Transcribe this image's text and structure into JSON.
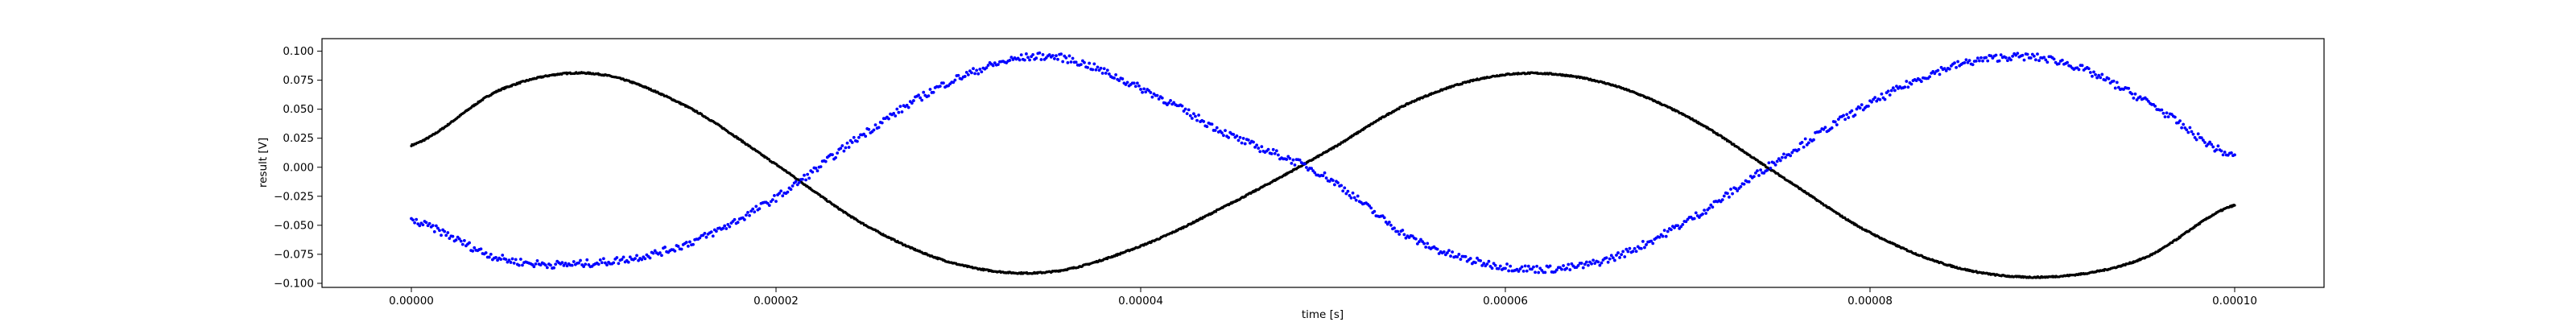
{
  "chart_data": {
    "type": "scatter",
    "title": "",
    "xlabel": "time [s]",
    "ylabel": "result [V]",
    "xlim": [
      -4.9e-06,
      0.0001049
    ],
    "ylim": [
      -0.1035,
      0.1108
    ],
    "x_ticks": [
      0,
      2e-05,
      4e-05,
      6e-05,
      8e-05,
      0.0001
    ],
    "x_tick_labels": [
      "0.00000",
      "0.00002",
      "0.00004",
      "0.00006",
      "0.00008",
      "0.00010"
    ],
    "y_ticks": [
      -0.1,
      -0.075,
      -0.05,
      -0.025,
      0,
      0.025,
      0.05,
      0.075,
      0.1
    ],
    "y_tick_labels": [
      "−0.100",
      "−0.075",
      "−0.050",
      "−0.025",
      "0.000",
      "0.025",
      "0.050",
      "0.075",
      "0.100"
    ],
    "grid": false,
    "legend": false,
    "series": [
      {
        "color": "#000000",
        "marker": "dot",
        "x": [
          0,
          5e-06,
          1e-05,
          1.5e-05,
          2e-05,
          2.5e-05,
          3e-05,
          3.5e-05,
          4e-05,
          4.5e-05,
          5e-05,
          5.5e-05,
          6e-05,
          6.5e-05,
          7e-05,
          7.5e-05,
          8e-05,
          8.5e-05,
          9e-05,
          9.5e-05,
          0.0001
        ],
        "y": [
          0.0189,
          0.0675,
          0.0807,
          0.0532,
          0.0024,
          -0.0507,
          -0.0837,
          -0.0902,
          -0.0679,
          -0.0307,
          0.0117,
          0.0571,
          0.0798,
          0.0744,
          0.0434,
          -0.0065,
          -0.0563,
          -0.0873,
          -0.0943,
          -0.0784,
          -0.0327
        ]
      },
      {
        "color": "#0000ff",
        "marker": "dot",
        "x": [
          0,
          5e-06,
          1e-05,
          1.5e-05,
          2e-05,
          2.5e-05,
          3e-05,
          3.5e-05,
          4e-05,
          4.5e-05,
          5e-05,
          5.5e-05,
          6e-05,
          6.5e-05,
          7e-05,
          7.5e-05,
          8e-05,
          8.5e-05,
          9e-05,
          9.5e-05,
          0.0001
        ],
        "y": [
          -0.0463,
          -0.0789,
          -0.0825,
          -0.0666,
          -0.0262,
          0.0307,
          0.0769,
          0.0955,
          0.0681,
          0.0268,
          -0.0067,
          -0.0622,
          -0.0857,
          -0.0822,
          -0.0461,
          0.0067,
          0.0548,
          0.0889,
          0.0925,
          0.0581,
          0.0091
        ]
      }
    ]
  }
}
